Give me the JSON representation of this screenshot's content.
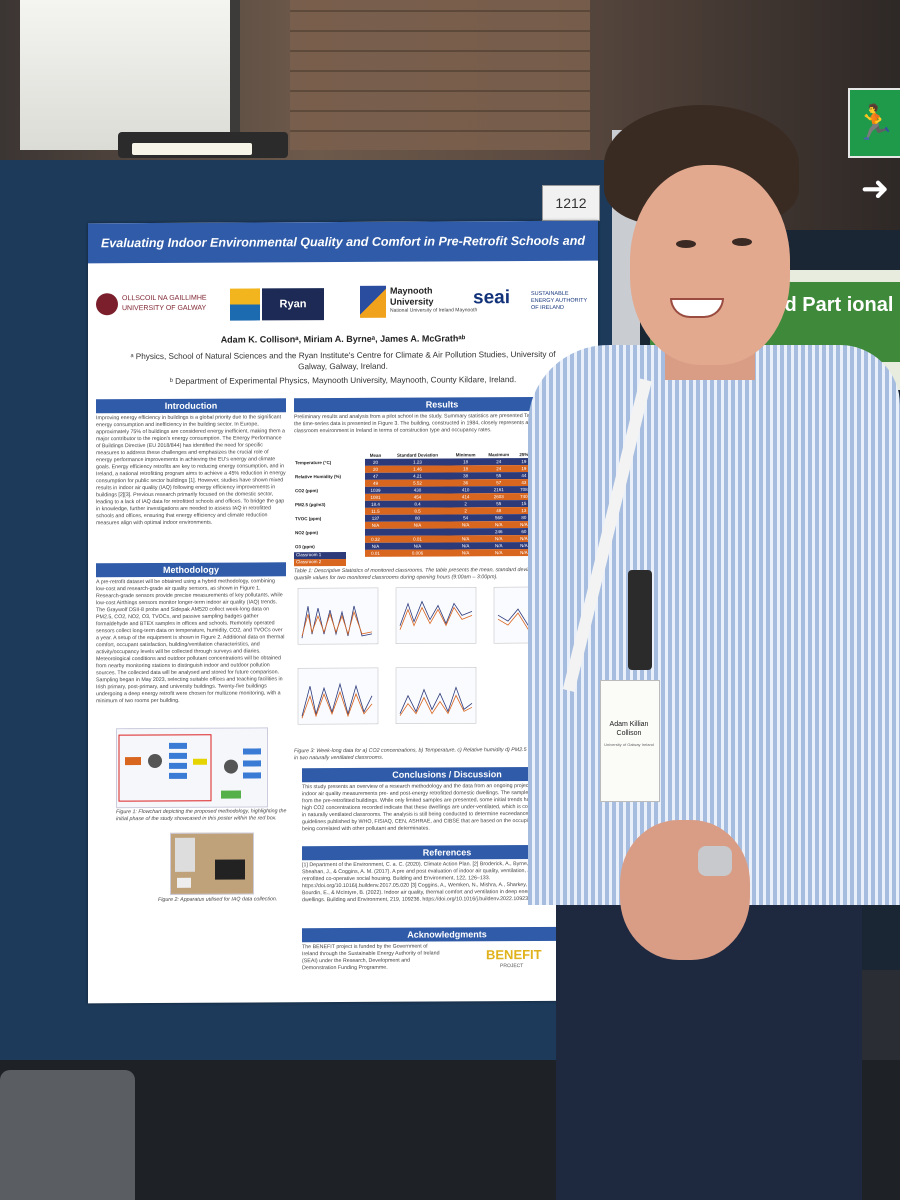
{
  "scene": {
    "board_number": "1212",
    "exit_sign": "🏃➜",
    "right_poster_title": "ion of Exhaled Part ional Fluid Dynamic"
  },
  "poster": {
    "title": "Evaluating Indoor Environmental Quality and Comfort in Pre-Retrofit Schools and Offices",
    "logos": {
      "galway_line1": "OLLSCOIL NA GAILLIMHE",
      "galway_line2": "UNIVERSITY OF GALWAY",
      "ryan": "Ryan Institute",
      "maynooth_line1": "Maynooth",
      "maynooth_line2": "University",
      "maynooth_line3": "National University of Ireland Maynooth",
      "seai": "seai",
      "seai_sub": "SUSTAINABLE ENERGY AUTHORITY OF IRELAND"
    },
    "authors": "Adam K. Collisonᵃ, Miriam A. Byrneᵃ, James A. McGrathᵃᵇ",
    "affiliation_a": "ᵃ Physics, School of Natural Sciences and the Ryan Institute's Centre for Climate & Air Pollution Studies, University of Galway, Galway, Ireland.",
    "affiliation_b": "ᵇ Department of Experimental Physics, Maynooth University, Maynooth, County Kildare, Ireland.",
    "sections": {
      "introduction": "Introduction",
      "methodology": "Methodology",
      "results": "Results",
      "conclusions": "Conclusions / Discussion",
      "references": "References",
      "acknowledgments": "Acknowledgments"
    },
    "intro_text": "Improving energy efficiency in buildings is a global priority due to the significant energy consumption and inefficiency in the building sector. In Europe, approximately 75% of buildings are considered energy inefficient, making them a major contributor to the region's energy consumption. The Energy Performance of Buildings Directive (EU 2018/844) has identified the need for specific measures to address these challenges and emphasizes the crucial role of energy performance improvements in achieving the EU's energy and climate goals. Energy efficiency retrofits are key to reducing energy consumption, and in Ireland, a national retrofitting program aims to achieve a 45% reduction in energy consumption for public sector buildings [1]. However, studies have shown mixed results in indoor air quality (IAQ) following energy efficiency improvements in buildings [2][3]. Previous research primarily focused on the domestic sector, leading to a lack of IAQ data for retrofitted schools and offices. To bridge the gap in knowledge, further investigations are needed to assess IAQ in retrofitted schools and offices, ensuring that energy efficiency and climate reduction measures align with optimal indoor environments.",
    "method_text": "A pre-retrofit dataset will be obtained using a hybrid methodology, combining low-cost and research-grade air quality sensors, as shown in Figure 1. Research-grade sensors provide precise measurements of key pollutants, while low-cost Airthings sensors monitor longer-term indoor air quality (IAQ) trends. The Graywolf DSII-8 probe and Sidepak AM520 collect week-long data on PM2.5, CO2, NO2, O3, TVOCs, and passive sampling badges gather formaldehyde and BTEX samples in offices and schools. Remotely operated sensors collect long-term data on temperature, humidity, CO2, and TVOCs over a year. A setup of the equipment is shown in Figure 2. Additional data on thermal comfort, occupant satisfaction, building/ventilation characteristics, and activity/occupancy levels will be collected through surveys and diaries. Meteorological conditions and outdoor pollutant concentrations will be obtained from nearby monitoring stations to distinguish indoor and outdoor pollution sources. The collected data will be analysed and stored for future comparison. Sampling began in May 2023, selecting suitable offices and teaching facilities in Irish primary, post-primary, and university buildings. Twenty-five buildings undergoing a deep energy retrofit were chosen for multizone monitoring, with a minimum of two rooms per building.",
    "results_text": "Preliminary results and analysis from a pilot school in the study. Summary statistics are presented Table 1 and an example of the time-series data is presented in Figure 3. The building, constructed in 1984, closely represents a typical primary school classroom environment in Ireland in terms of construction type and occupancy rates.",
    "table": {
      "headers": [
        "",
        "Mean",
        "Standard Deviation",
        "Minimum",
        "Maximum",
        "25%",
        "50%"
      ],
      "rows": [
        [
          "Temperature (°C)",
          "20",
          "1.23",
          "18",
          "24",
          "19",
          "20"
        ],
        [
          "",
          "20",
          "1.46",
          "18",
          "24",
          "19",
          "20"
        ],
        [
          "Relative Humidity (%)",
          "47",
          "4.21",
          "38",
          "55",
          "44",
          "46"
        ],
        [
          "",
          "49",
          "5.52",
          "36",
          "57",
          "43",
          "51"
        ],
        [
          "CO2 (ppm)",
          "1039",
          "430",
          "410",
          "2161",
          "708",
          "958"
        ],
        [
          "",
          "1081",
          "454",
          "414",
          "2603",
          "740",
          "1021"
        ],
        [
          "PM2.5 (µg/m3)",
          "18.4",
          "8.4",
          "2",
          "55",
          "15",
          "17"
        ],
        [
          "",
          "11.5",
          "8.5",
          "2",
          "48",
          "13",
          "11"
        ],
        [
          "TVOC (ppm)",
          "137",
          "80",
          "54",
          "560",
          "80",
          "114"
        ],
        [
          "",
          "N/A",
          "N/A",
          "N/A",
          "N/A",
          "N/A",
          "N/A"
        ],
        [
          "NO2 (ppm)",
          "",
          "",
          "",
          "246",
          "60",
          "N/A"
        ],
        [
          "",
          "0.32",
          "0.01",
          "N/A",
          "N/A",
          "N/A",
          "N/A"
        ],
        [
          "O3 (ppm)",
          "N/A",
          "N/A",
          "N/A",
          "N/A",
          "N/A",
          "N/A"
        ],
        [
          "",
          "0.01",
          "0.006",
          "N/A",
          "N/A",
          "N/A",
          "N/A"
        ]
      ],
      "legend_1": "Classroom 1",
      "legend_2": "Classroom 2",
      "caption": "Table 1: Descriptive Statistics of monitored classrooms. The table presents the mean, standard deviation, maximum, and quartile values for two monitored classrooms during opening hours (9:00am – 3:00pm)."
    },
    "fig1_caption": "Figure 1: Flowchart depicting the proposed methodology, highlighting the initial phase of the study showcased in this poster within the red box.",
    "fig2_caption": "Figure 2: Apparatus utilised for IAQ data collection.",
    "fig3_caption": "Figure 3: Week-long data for a) CO2 concentrations, b) Temperature, c) Relative humidity d) PM2.5 e) TVOC concentrations in two naturally ventilated classrooms.",
    "conclusions_text": "This study presents an overview of a research methodology and the data from an ongoing project. The study aims to collect indoor air quality measurements pre- and post-energy retrofitted domestic dwellings. The sample collection is still ongoing from the pre-retrofitted buildings. While only limited samples are presented, some initial trends have been observed. The high CO2 concentrations recorded indicate that these dwellings are under-ventilated, which is consistent with observations in naturally ventilated classrooms. The analysis is still being conducted to determine exceedance duration based on guidelines published by WHO, FISIAQ, CEN, ASHRAE, and CIBSE that are based on the occupied period. The data is being correlated with other pollutant and determinates.",
    "references_text": "[1] Department of the Environment, C. a. C. (2020). Climate Action Plan. [2] Broderick, Á., Byrne, M., Armstrong, S., Sheahan, J., & Coggins, A. M. (2017). A pre and post evaluation of indoor air quality, ventilation, and thermal comfort in retrofitted co-operative social housing. Building and Environment, 122, 126–133. https://doi.org/10.1016/j.buildenv.2017.05.020 [3] Coggins, A., Wemken, N., Mishra, A., Sharkey, M., Horgan, L., Cowie, H., Bourdin, E., & McIntyre, B. (2022). Indoor air quality, thermal comfort and ventilation in deep energy retrofitted Irish dwellings. Building and Environment, 219, 109236. https://doi.org/10.1016/j.buildenv.2022.109236",
    "ack_text": "The BENEFIT project is funded by the Government of Ireland through the Sustainable Energy Authority of Ireland (SEAI) under the Research, Development and Demonstration Funding Programme.",
    "benefit_logo": "BENEFIT",
    "benefit_sub": "PROJECT"
  },
  "badge": {
    "name": "Adam Killian Collison",
    "org": "University of Galway Ireland"
  },
  "colors": {
    "poster_blue": "#2f5ba8",
    "table_classroom1": "#2c3a7a",
    "table_classroom2": "#d9661f",
    "shirt_stripe": "#a6bde0"
  }
}
